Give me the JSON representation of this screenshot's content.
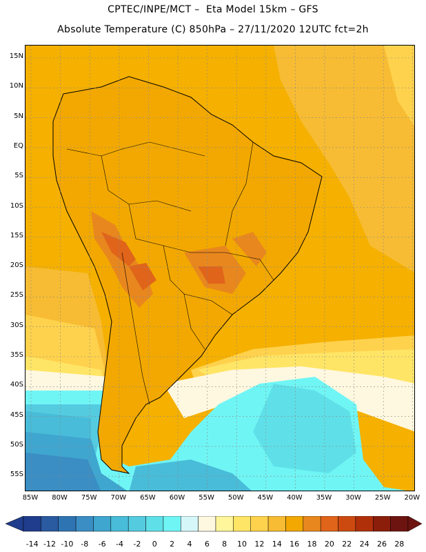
{
  "header": {
    "line1": "CPTEC/INPE/MCT –  Eta Model 15km – GFS",
    "line2": "Absolute Temperature (C) 850hPa – 27/11/2020 12UTC fct=2h"
  },
  "map": {
    "lon_labels": [
      "85W",
      "80W",
      "75W",
      "70W",
      "65W",
      "60W",
      "55W",
      "50W",
      "45W",
      "40W",
      "35W",
      "30W",
      "25W",
      "20W"
    ],
    "lat_labels": [
      "15N",
      "10N",
      "5N",
      "EQ",
      "5S",
      "10S",
      "15S",
      "20S",
      "25S",
      "30S",
      "35S",
      "40S",
      "45S",
      "50S",
      "55S"
    ]
  },
  "colorbar": {
    "labels": [
      "-14",
      "-12",
      "-10",
      "-8",
      "-6",
      "-4",
      "-2",
      "0",
      "2",
      "4",
      "6",
      "8",
      "10",
      "12",
      "14",
      "16",
      "18",
      "20",
      "22",
      "24",
      "26",
      "28"
    ],
    "colors": [
      "#1f3d8c",
      "#2a5aa0",
      "#2f74b2",
      "#3a8ec4",
      "#3fa6cf",
      "#48bcd8",
      "#55cbe0",
      "#5fe0e8",
      "#70f5f5",
      "#d6f7fa",
      "#fff8e0",
      "#fff59a",
      "#ffe566",
      "#ffd24d",
      "#f7bc33",
      "#f2a800",
      "#e8871e",
      "#e0641a",
      "#cc4a10",
      "#b0300a",
      "#8a1e0a",
      "#6e1410"
    ]
  }
}
